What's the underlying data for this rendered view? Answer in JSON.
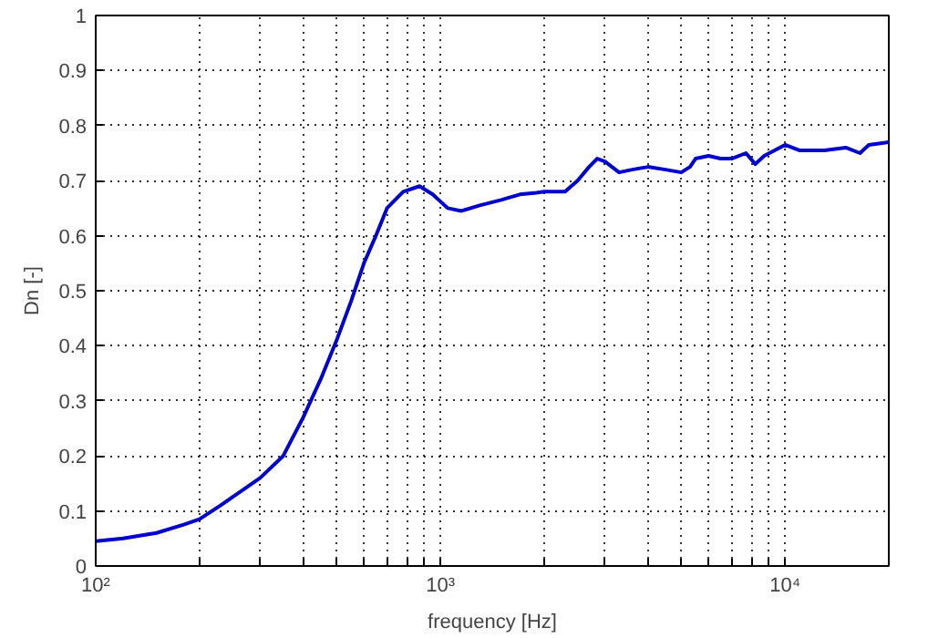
{
  "chart_data": {
    "type": "line",
    "xlabel": "frequency [Hz]",
    "ylabel": "Dn [-]",
    "log": "x",
    "x": [
      100,
      120,
      150,
      180,
      200,
      230,
      270,
      300,
      350,
      400,
      450,
      500,
      550,
      600,
      650,
      700,
      780,
      870,
      950,
      1050,
      1150,
      1300,
      1500,
      1700,
      1900,
      2000,
      2300,
      2500,
      2700,
      2850,
      3000,
      3300,
      3600,
      4000,
      4500,
      5000,
      5300,
      5500,
      6000,
      6500,
      7000,
      7700,
      8200,
      8700,
      10000,
      11000,
      13000,
      15000,
      16500,
      17500,
      20000
    ],
    "series": [
      {
        "color": "#0000cc",
        "values": [
          0.045,
          0.05,
          0.06,
          0.075,
          0.085,
          0.11,
          0.14,
          0.16,
          0.2,
          0.27,
          0.34,
          0.41,
          0.48,
          0.55,
          0.6,
          0.65,
          0.68,
          0.69,
          0.675,
          0.65,
          0.645,
          0.655,
          0.665,
          0.675,
          0.678,
          0.68,
          0.68,
          0.7,
          0.725,
          0.74,
          0.735,
          0.715,
          0.72,
          0.725,
          0.72,
          0.715,
          0.725,
          0.74,
          0.745,
          0.74,
          0.74,
          0.75,
          0.73,
          0.745,
          0.765,
          0.755,
          0.755,
          0.76,
          0.75,
          0.765,
          0.77
        ]
      }
    ],
    "xlim": [
      100,
      20000
    ],
    "xticks": [
      {
        "value": 100,
        "label": "10²"
      },
      {
        "value": 200,
        "label": null
      },
      {
        "value": 300,
        "label": null
      },
      {
        "value": 400,
        "label": null
      },
      {
        "value": 500,
        "label": null
      },
      {
        "value": 600,
        "label": null
      },
      {
        "value": 700,
        "label": null
      },
      {
        "value": 800,
        "label": null
      },
      {
        "value": 900,
        "label": null
      },
      {
        "value": 1000,
        "label": "10³"
      },
      {
        "value": 2000,
        "label": null
      },
      {
        "value": 3000,
        "label": null
      },
      {
        "value": 4000,
        "label": null
      },
      {
        "value": 5000,
        "label": null
      },
      {
        "value": 6000,
        "label": null
      },
      {
        "value": 7000,
        "label": null
      },
      {
        "value": 8000,
        "label": null
      },
      {
        "value": 9000,
        "label": null
      },
      {
        "value": 10000,
        "label": "10⁴"
      }
    ],
    "ylim": [
      0,
      1
    ],
    "yticks": [
      0,
      0.1,
      0.2,
      0.3,
      0.4,
      0.5,
      0.6,
      0.7,
      0.8,
      0.9,
      1
    ],
    "grid": true,
    "line_style": "solid"
  }
}
